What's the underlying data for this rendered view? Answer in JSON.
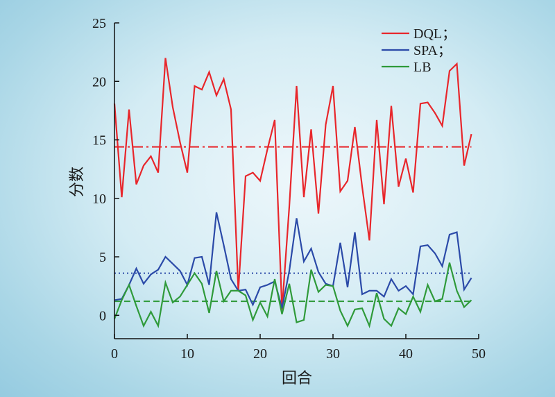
{
  "chart_data": {
    "type": "line",
    "xlabel": "回合",
    "ylabel": "分数",
    "xlim": [
      0,
      50
    ],
    "ylim": [
      -2,
      25
    ],
    "x_ticks": [
      0,
      10,
      20,
      30,
      40,
      50
    ],
    "y_ticks": [
      0,
      5,
      10,
      15,
      20,
      25
    ],
    "grid": false,
    "legend_position": "top-right",
    "x": [
      0,
      1,
      2,
      3,
      4,
      5,
      6,
      7,
      8,
      9,
      10,
      11,
      12,
      13,
      14,
      15,
      16,
      17,
      18,
      19,
      20,
      21,
      22,
      23,
      24,
      25,
      26,
      27,
      28,
      29,
      30,
      31,
      32,
      33,
      34,
      35,
      36,
      37,
      38,
      39,
      40,
      41,
      42,
      43,
      44,
      45,
      46,
      47,
      48,
      49
    ],
    "series": [
      {
        "name": "DQL；",
        "color": "#e8262b",
        "values": [
          18.1,
          10.1,
          17.6,
          11.2,
          12.8,
          13.6,
          12.2,
          22.0,
          17.8,
          14.8,
          12.2,
          19.6,
          19.3,
          20.8,
          18.8,
          20.2,
          17.6,
          2.1,
          11.9,
          12.2,
          11.5,
          14.2,
          16.7,
          0.5,
          9.3,
          19.6,
          10.1,
          15.9,
          8.7,
          16.3,
          19.6,
          10.6,
          11.5,
          16.1,
          11.0,
          6.4,
          16.7,
          9.5,
          17.9,
          11.0,
          13.4,
          10.5,
          18.1,
          18.2,
          17.3,
          16.2,
          20.9,
          21.5,
          12.8,
          15.5
        ]
      },
      {
        "name": "SPA；",
        "color": "#2b4aa8",
        "values": [
          1.3,
          1.4,
          2.6,
          4.0,
          2.7,
          3.5,
          3.9,
          5.0,
          4.4,
          3.8,
          2.6,
          4.9,
          5.0,
          2.6,
          8.8,
          6.0,
          3.1,
          2.1,
          2.2,
          0.9,
          2.4,
          2.6,
          2.9,
          0.6,
          3.8,
          8.3,
          4.6,
          5.7,
          3.7,
          2.7,
          2.5,
          6.2,
          2.4,
          7.1,
          1.8,
          2.1,
          2.1,
          1.6,
          3.1,
          2.1,
          2.5,
          1.8,
          5.9,
          6.0,
          5.3,
          4.2,
          6.9,
          7.1,
          2.2,
          3.2
        ]
      },
      {
        "name": "LB",
        "color": "#2f9a3a",
        "values": [
          -0.3,
          1.3,
          2.6,
          0.8,
          -0.9,
          0.3,
          -0.9,
          2.8,
          1.1,
          1.6,
          2.6,
          3.6,
          2.7,
          0.2,
          3.8,
          1.2,
          2.1,
          2.1,
          1.7,
          -0.4,
          1.1,
          -0.1,
          3.1,
          0.1,
          2.7,
          -0.6,
          -0.4,
          3.9,
          2.0,
          2.6,
          2.5,
          0.4,
          -0.9,
          0.5,
          0.6,
          -0.9,
          1.9,
          -0.3,
          -0.9,
          0.6,
          0.1,
          1.6,
          0.3,
          2.6,
          1.2,
          1.4,
          4.5,
          2.1,
          0.7,
          1.3
        ]
      }
    ],
    "reference_lines": [
      {
        "series": "DQL；",
        "value": 14.4,
        "style": "dash-dot",
        "color": "#e8262b"
      },
      {
        "series": "SPA；",
        "value": 3.6,
        "style": "dotted",
        "color": "#2b4aa8"
      },
      {
        "series": "LB",
        "value": 1.2,
        "style": "dashed",
        "color": "#2f9a3a"
      }
    ]
  }
}
